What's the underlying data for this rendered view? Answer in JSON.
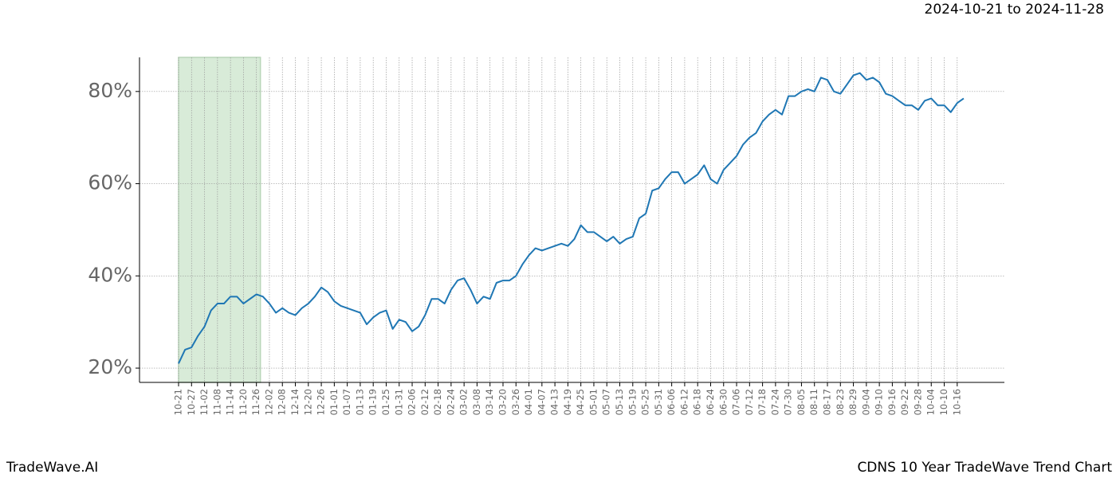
{
  "chart_data": {
    "type": "line",
    "title": "2024-10-21 to 2024-11-28",
    "footer_left": "TradeWave.AI",
    "footer_right": "CDNS 10 Year TradeWave Trend Chart",
    "categories": [
      "10-21",
      null,
      "10-27",
      null,
      "11-02",
      null,
      "11-08",
      null,
      "11-14",
      null,
      "11-20",
      null,
      "11-26",
      null,
      "12-02",
      null,
      "12-08",
      null,
      "12-14",
      null,
      "12-20",
      null,
      "12-26",
      null,
      "01-01",
      null,
      "01-07",
      null,
      "01-13",
      null,
      "01-19",
      null,
      "01-25",
      null,
      "01-31",
      null,
      "02-06",
      null,
      "02-12",
      null,
      "02-18",
      null,
      "02-24",
      null,
      "03-02",
      null,
      "03-08",
      null,
      "03-14",
      null,
      "03-20",
      null,
      "03-26",
      null,
      "04-01",
      null,
      "04-07",
      null,
      "04-13",
      null,
      "04-19",
      null,
      "04-25",
      null,
      "05-01",
      null,
      "05-07",
      null,
      "05-13",
      null,
      "05-19",
      null,
      "05-25",
      null,
      "05-31",
      null,
      "06-06",
      null,
      "06-12",
      null,
      "06-18",
      null,
      "06-24",
      null,
      "06-30",
      null,
      "07-06",
      null,
      "07-12",
      null,
      "07-18",
      null,
      "07-24",
      null,
      "07-30",
      null,
      "08-05",
      null,
      "08-11",
      null,
      "08-17",
      null,
      "08-23",
      null,
      "08-29",
      null,
      "09-04",
      null,
      "09-10",
      null,
      "09-16",
      null,
      "09-22",
      null,
      "09-28",
      null,
      "10-04",
      null,
      "10-10",
      null,
      "10-16",
      null
    ],
    "values": [
      21,
      24,
      24.5,
      27,
      29,
      32.5,
      34,
      34,
      35.5,
      35.5,
      34,
      35,
      36,
      35.5,
      34,
      32,
      33,
      32,
      31.5,
      33,
      34,
      35.5,
      37.5,
      36.5,
      34.5,
      33.5,
      33,
      32.5,
      32,
      29.5,
      31,
      32,
      32.5,
      28.5,
      30.5,
      30,
      28,
      29,
      31.5,
      35,
      35,
      34,
      37,
      39,
      39.5,
      37,
      34,
      35.5,
      35,
      38.5,
      39,
      39,
      40,
      42.5,
      44.5,
      46,
      45.5,
      46,
      46.5,
      47,
      46.5,
      48,
      51,
      49.5,
      49.5,
      48.5,
      47.5,
      48.5,
      47,
      48,
      48.5,
      52.5,
      53.5,
      58.5,
      59,
      61,
      62.5,
      62.5,
      60,
      61,
      62,
      64,
      61,
      60,
      63,
      64.5,
      66,
      68.5,
      70,
      71,
      73.5,
      75,
      76,
      75,
      79,
      79,
      80,
      80.5,
      80,
      83,
      82.5,
      80,
      79.5,
      81.5,
      83.5,
      84,
      82.5,
      83,
      82,
      79.5,
      79,
      78,
      77,
      77,
      76,
      78,
      78.5,
      77,
      77,
      75.5,
      77.5,
      78.5
    ],
    "color": "#1f77b4",
    "ylim": [
      16.9,
      87.4
    ],
    "yticks": [
      {
        "value": 20,
        "label": "20%"
      },
      {
        "value": 40,
        "label": "40%"
      },
      {
        "value": 60,
        "label": "60%"
      },
      {
        "value": 80,
        "label": "80%"
      }
    ],
    "grid": true,
    "highlight": {
      "from": "10-21",
      "to": "11-26",
      "color": "#d8ebd8"
    }
  }
}
